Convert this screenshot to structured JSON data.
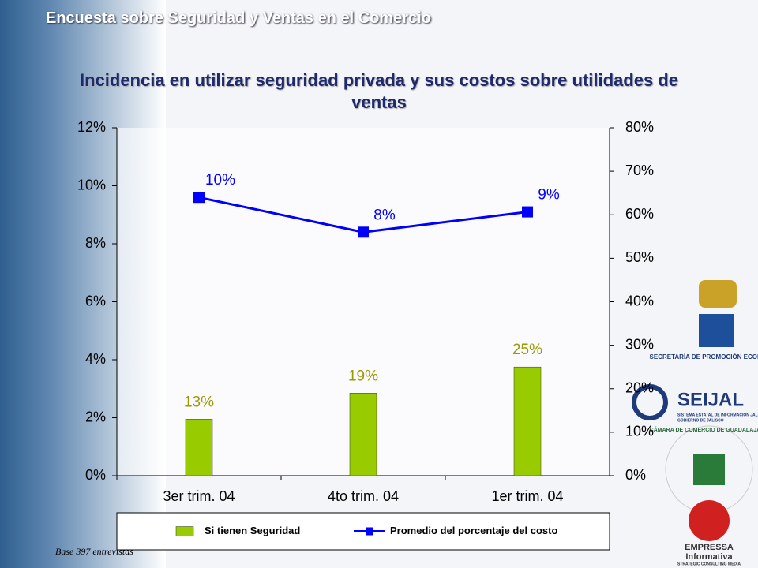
{
  "header": "Encuesta sobre Seguridad y Ventas en el Comercio",
  "chart_data": {
    "type": "bar-line",
    "title": "Incidencia en utilizar seguridad privada y sus costos sobre utilidades de ventas",
    "categories": [
      "3er trim. 04",
      "4to trim. 04",
      "1er trim. 04"
    ],
    "series": [
      {
        "name": "Si tienen Seguridad",
        "type": "bar",
        "axis": "y2",
        "color": "#99cc00",
        "values": [
          13,
          19,
          25
        ],
        "value_labels": [
          "13%",
          "19%",
          "25%"
        ],
        "label_color": "#999900"
      },
      {
        "name": "Promedio del porcentaje del costo",
        "type": "line",
        "axis": "y",
        "color": "#0000ff",
        "values": [
          9.6,
          8.4,
          9.1
        ],
        "value_labels": [
          "10%",
          "8%",
          "9%"
        ],
        "label_color": "#0000ff"
      }
    ],
    "ylim": [
      0,
      12
    ],
    "yticks": [
      {
        "value": 0,
        "label": "0%"
      },
      {
        "value": 2,
        "label": "2%"
      },
      {
        "value": 4,
        "label": "4%"
      },
      {
        "value": 6,
        "label": "6%"
      },
      {
        "value": 8,
        "label": "8%"
      },
      {
        "value": 10,
        "label": "10%"
      },
      {
        "value": 12,
        "label": "12%"
      }
    ],
    "y2lim": [
      0,
      80
    ],
    "y2ticks": [
      {
        "value": 0,
        "label": "0%"
      },
      {
        "value": 10,
        "label": "10%"
      },
      {
        "value": 20,
        "label": "20%"
      },
      {
        "value": 30,
        "label": "30%"
      },
      {
        "value": 40,
        "label": "40%"
      },
      {
        "value": 50,
        "label": "50%"
      },
      {
        "value": 60,
        "label": "60%"
      },
      {
        "value": 70,
        "label": "70%"
      },
      {
        "value": 80,
        "label": "80%"
      }
    ],
    "legend": "bottom",
    "note": "Base 397 entrevistas"
  },
  "logos": {
    "secretaria": "SECRETARÍA DE PROMOCIÓN ECONÓMICA",
    "seijal": "SEIJAL",
    "seijal_sub": "SISTEMA ESTATAL DE INFORMACIÓN JALISCO",
    "seijal_gob": "GOBIERNO DE JALISCO",
    "camara": "CÁMARA DE COMERCIO DE GUADALAJARA",
    "empressa": "EMPRESSA",
    "informativa": "Informativa",
    "empressa_sub": "STRATEGIC CONSULTING MEDIA"
  }
}
